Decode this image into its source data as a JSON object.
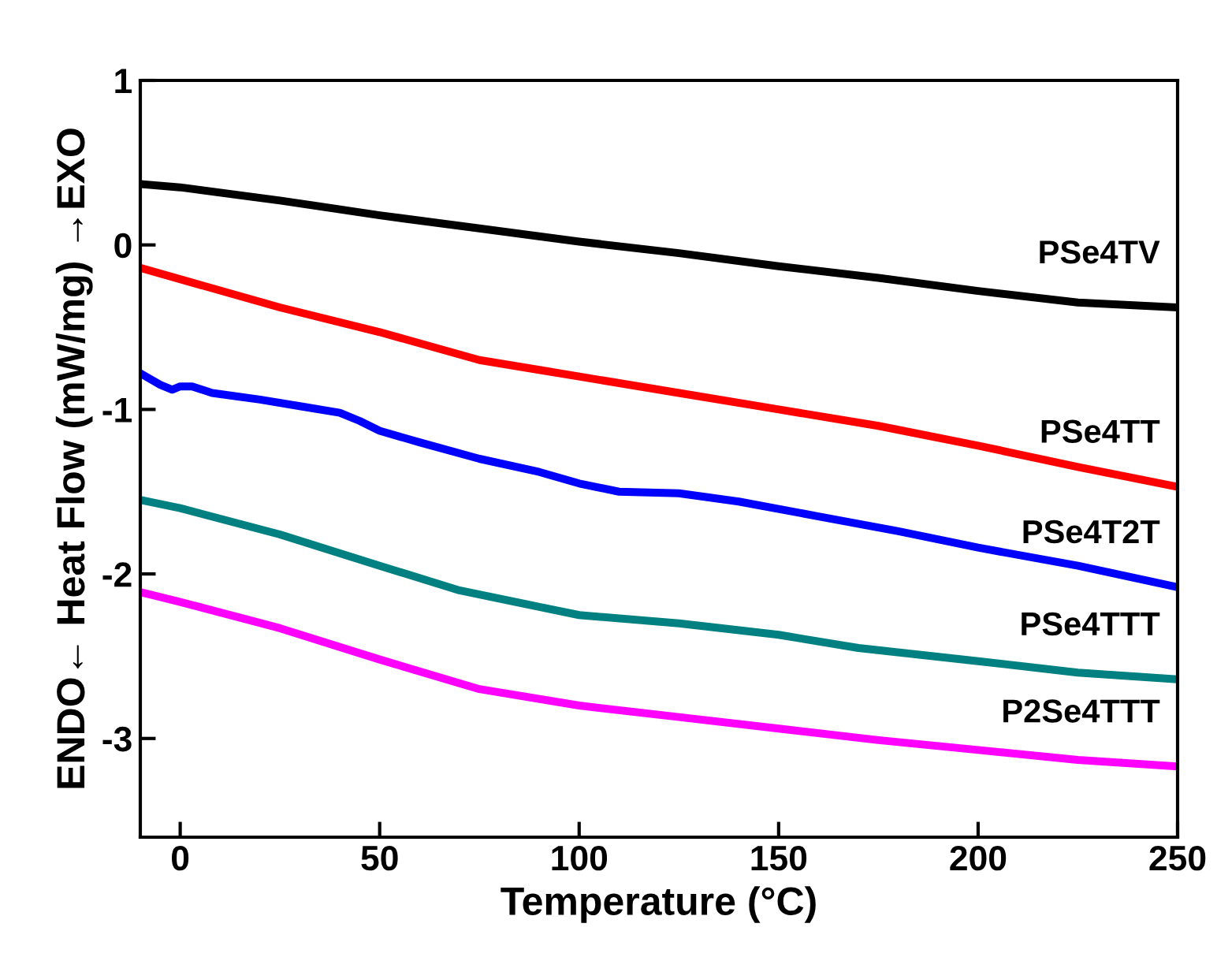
{
  "chart_data": {
    "type": "line",
    "xlabel": "Temperature (°C)",
    "ylabel": "ENDO← Heat Flow (mW/mg) →EXO",
    "xlim": [
      -10,
      250
    ],
    "ylim": [
      -3.6,
      1
    ],
    "xticks": [
      0,
      50,
      100,
      150,
      200,
      250
    ],
    "yticks": [
      -3,
      -2,
      -1,
      0,
      1
    ],
    "grid": false,
    "legend": false,
    "marker": "none",
    "line_style": "solid",
    "series": [
      {
        "name": "PSe4TV",
        "color": "#000000",
        "x": [
          -10,
          0,
          25,
          50,
          75,
          100,
          125,
          150,
          175,
          200,
          225,
          250
        ],
        "values": [
          0.37,
          0.35,
          0.27,
          0.18,
          0.1,
          0.02,
          -0.05,
          -0.13,
          -0.2,
          -0.28,
          -0.35,
          -0.38
        ]
      },
      {
        "name": "PSe4TT",
        "color": "#ff0000",
        "x": [
          -10,
          25,
          50,
          75,
          90,
          100,
          125,
          150,
          175,
          200,
          225,
          250
        ],
        "values": [
          -0.14,
          -0.38,
          -0.53,
          -0.7,
          -0.76,
          -0.8,
          -0.9,
          -1.0,
          -1.1,
          -1.22,
          -1.35,
          -1.47
        ]
      },
      {
        "name": "PSe4T2T",
        "color": "#0000ff",
        "x": [
          -10,
          -5,
          -2,
          0,
          3,
          8,
          20,
          30,
          40,
          45,
          50,
          60,
          75,
          90,
          100,
          110,
          125,
          140,
          160,
          180,
          200,
          225,
          250
        ],
        "values": [
          -0.78,
          -0.85,
          -0.88,
          -0.86,
          -0.86,
          -0.9,
          -0.94,
          -0.98,
          -1.02,
          -1.07,
          -1.13,
          -1.2,
          -1.3,
          -1.38,
          -1.45,
          -1.5,
          -1.51,
          -1.56,
          -1.65,
          -1.74,
          -1.84,
          -1.95,
          -2.08
        ]
      },
      {
        "name": "PSe4TTT",
        "color": "#008080",
        "x": [
          -10,
          0,
          25,
          50,
          70,
          90,
          100,
          125,
          150,
          170,
          200,
          225,
          250
        ],
        "values": [
          -1.55,
          -1.6,
          -1.76,
          -1.95,
          -2.1,
          -2.2,
          -2.25,
          -2.3,
          -2.37,
          -2.45,
          -2.53,
          -2.6,
          -2.64
        ]
      },
      {
        "name": "P2Se4TTT",
        "color": "#ff00ff",
        "x": [
          -10,
          0,
          25,
          50,
          75,
          100,
          125,
          150,
          175,
          200,
          225,
          250
        ],
        "values": [
          -2.11,
          -2.17,
          -2.33,
          -2.52,
          -2.7,
          -2.8,
          -2.87,
          -2.94,
          -3.01,
          -3.07,
          -3.13,
          -3.17
        ]
      }
    ]
  }
}
